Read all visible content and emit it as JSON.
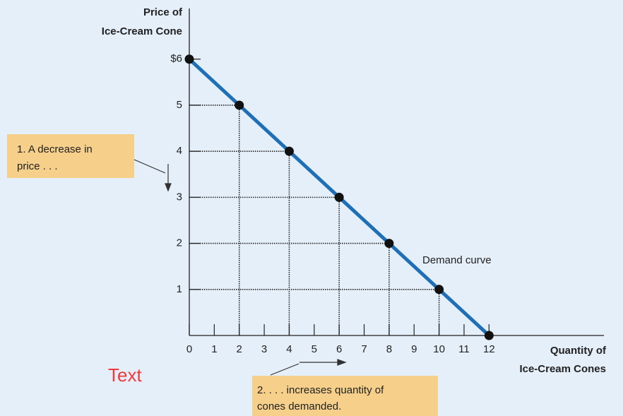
{
  "chart_data": {
    "type": "line",
    "x": [
      0,
      2,
      4,
      6,
      8,
      10,
      12
    ],
    "values": [
      6,
      5,
      4,
      3,
      2,
      1,
      0
    ],
    "color": "#1f6fb6",
    "xlim": [
      0,
      16.6
    ],
    "xticks": [
      0,
      1,
      2,
      3,
      4,
      5,
      6,
      7,
      8,
      9,
      10,
      11,
      12
    ],
    "ylim": [
      0,
      7.1
    ],
    "yticks": [
      1,
      2,
      3,
      4,
      5,
      {
        "value": 6,
        "label": "$6"
      }
    ],
    "ylabel": [
      "Price of",
      "Ice-Cream Cone"
    ],
    "xlabel": [
      "Quantity of",
      "Ice-Cream Cones"
    ],
    "annotations": {
      "curve": "Demand curve",
      "price": [
        "1. A decrease in",
        "price . . ."
      ],
      "quantity": [
        "2. . . . increases quantity of",
        "cones demanded."
      ],
      "extra": "Text"
    }
  }
}
